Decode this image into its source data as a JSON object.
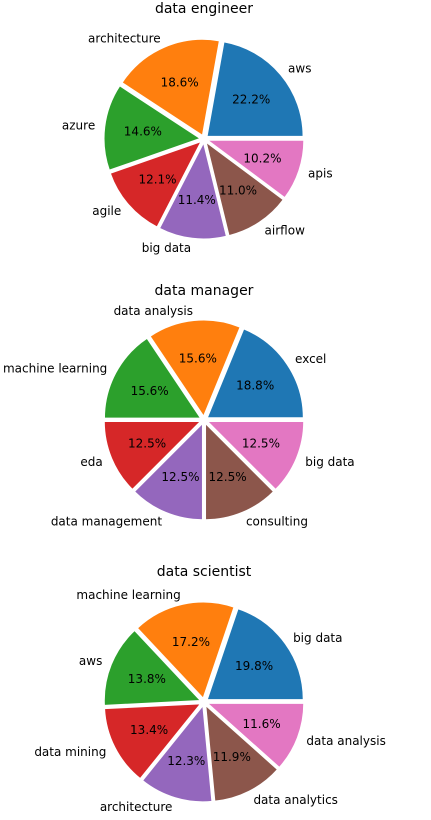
{
  "chart_data": [
    {
      "type": "pie",
      "title": "data engineer",
      "categories": [
        "aws",
        "architecture",
        "azure",
        "agile",
        "big data",
        "airflow",
        "apis"
      ],
      "values": [
        22.2,
        18.6,
        14.6,
        12.1,
        11.4,
        11.0,
        10.2
      ],
      "percent_labels": [
        "22.2%",
        "18.6%",
        "14.6%",
        "12.1%",
        "11.4%",
        "11.0%",
        "10.2%"
      ],
      "colors": [
        "#1f77b4",
        "#ff7f0e",
        "#2ca02c",
        "#d62728",
        "#9467bd",
        "#8c564b",
        "#e377c2"
      ],
      "start_angle_deg": 0,
      "direction": "counterclockwise",
      "exploded": true
    },
    {
      "type": "pie",
      "title": "data manager",
      "categories": [
        "excel",
        "data analysis",
        "machine learning",
        "eda",
        "data management",
        "consulting",
        "big data"
      ],
      "values": [
        18.8,
        15.6,
        15.6,
        12.5,
        12.5,
        12.5,
        12.5
      ],
      "percent_labels": [
        "18.8%",
        "15.6%",
        "15.6%",
        "12.5%",
        "12.5%",
        "12.5%",
        "12.5%"
      ],
      "colors": [
        "#1f77b4",
        "#ff7f0e",
        "#2ca02c",
        "#d62728",
        "#9467bd",
        "#8c564b",
        "#e377c2"
      ],
      "start_angle_deg": 0,
      "direction": "counterclockwise",
      "exploded": true
    },
    {
      "type": "pie",
      "title": "data scientist",
      "categories": [
        "big data",
        "machine learning",
        "aws",
        "data mining",
        "architecture",
        "data analytics",
        "data analysis"
      ],
      "values": [
        19.8,
        17.2,
        13.8,
        13.4,
        12.3,
        11.9,
        11.6
      ],
      "percent_labels": [
        "19.8%",
        "17.2%",
        "13.8%",
        "13.4%",
        "12.3%",
        "11.9%",
        "11.6%"
      ],
      "colors": [
        "#1f77b4",
        "#ff7f0e",
        "#2ca02c",
        "#d62728",
        "#9467bd",
        "#8c564b",
        "#e377c2"
      ],
      "start_angle_deg": 0,
      "direction": "counterclockwise",
      "exploded": true
    }
  ]
}
